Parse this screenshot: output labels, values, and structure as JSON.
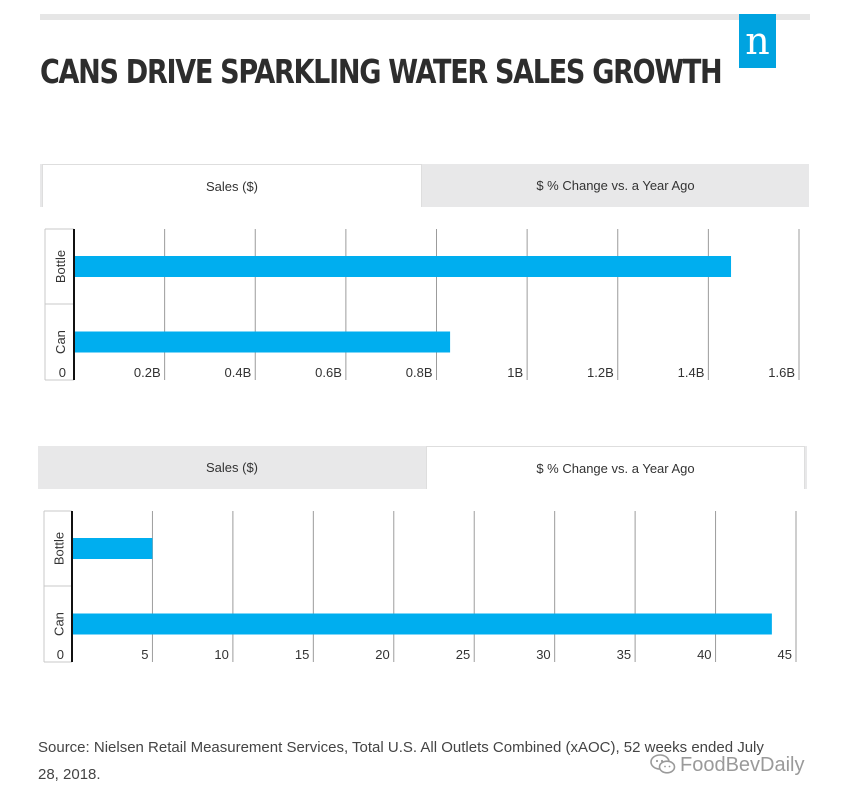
{
  "header": {
    "title": "CANS DRIVE SPARKLING WATER SALES GROWTH",
    "logo_letter": "n",
    "logo_color": "#00a3e0"
  },
  "panels": [
    {
      "tabs": [
        {
          "label": "Sales ($)",
          "active": true
        },
        {
          "label": "$ % Change vs. a Year Ago",
          "active": false
        }
      ]
    },
    {
      "tabs": [
        {
          "label": "Sales ($)",
          "active": false
        },
        {
          "label": "$ % Change vs. a Year Ago",
          "active": true
        }
      ]
    }
  ],
  "chart_data": [
    {
      "type": "bar",
      "orientation": "horizontal",
      "categories": [
        "Bottle",
        "Can"
      ],
      "values": [
        1.45,
        0.83
      ],
      "value_unit": "B",
      "xlim": [
        0,
        1.6
      ],
      "ticks": [
        0,
        0.2,
        0.4,
        0.6,
        0.8,
        1.0,
        1.2,
        1.4,
        1.6
      ],
      "tick_labels": [
        "0",
        "0.2B",
        "0.4B",
        "0.6B",
        "0.8B",
        "1B",
        "1.2B",
        "1.4B",
        "1.6B"
      ],
      "grid": true,
      "bar_color": "#00aeef"
    },
    {
      "type": "bar",
      "orientation": "horizontal",
      "categories": [
        "Bottle",
        "Can"
      ],
      "values": [
        5.0,
        43.5
      ],
      "xlim": [
        0,
        45
      ],
      "ticks": [
        0,
        5,
        10,
        15,
        20,
        25,
        30,
        35,
        40,
        45
      ],
      "tick_labels": [
        "0",
        "5",
        "10",
        "15",
        "20",
        "25",
        "30",
        "35",
        "40",
        "45"
      ],
      "grid": true,
      "bar_color": "#00aeef"
    }
  ],
  "footer": {
    "source": "Source: Nielsen Retail Measurement Services, Total U.S. All Outlets Combined (xAOC), 52 weeks ended July 28, 2018.",
    "watermark": "FoodBevDaily"
  }
}
